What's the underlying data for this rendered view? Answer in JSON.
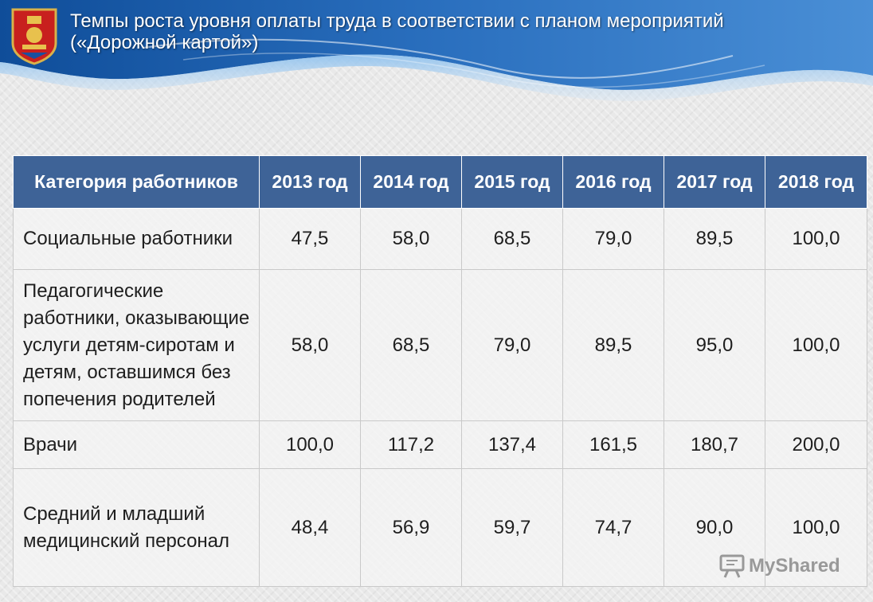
{
  "colors": {
    "header_fill": "#3e6397",
    "wave_dark": "#1b5aa6",
    "wave_light": "#6fa9e0"
  },
  "header": {
    "title_line1": "Темпы роста уровня оплаты труда в соответствии с планом мероприятий",
    "title_line2": "(«Дорожной картой»)",
    "emblem_icon": "coat-of-arms-icon"
  },
  "table": {
    "columns": [
      "Категория работников",
      "2013 год",
      "2014 год",
      "2015 год",
      "2016 год",
      "2017 год",
      "2018 год"
    ],
    "rows": [
      {
        "category": "Социальные работники",
        "values": [
          "47,5",
          "58,0",
          "68,5",
          "79,0",
          "89,5",
          "100,0"
        ]
      },
      {
        "category": "Педагогические работники, оказывающие услуги детям-сиротам и детям, оставшимся без попечения родителей",
        "values": [
          "58,0",
          "68,5",
          "79,0",
          "89,5",
          "95,0",
          "100,0"
        ]
      },
      {
        "category": "Врачи",
        "values": [
          "100,0",
          "117,2",
          "137,4",
          "161,5",
          "180,7",
          "200,0"
        ]
      },
      {
        "category": "Средний и младший медицинский персонал",
        "values": [
          "48,4",
          "56,9",
          "59,7",
          "74,7",
          "90,0",
          "100,0"
        ]
      }
    ]
  },
  "watermark": {
    "text": "MyShared",
    "icon": "presentation-board-icon"
  }
}
